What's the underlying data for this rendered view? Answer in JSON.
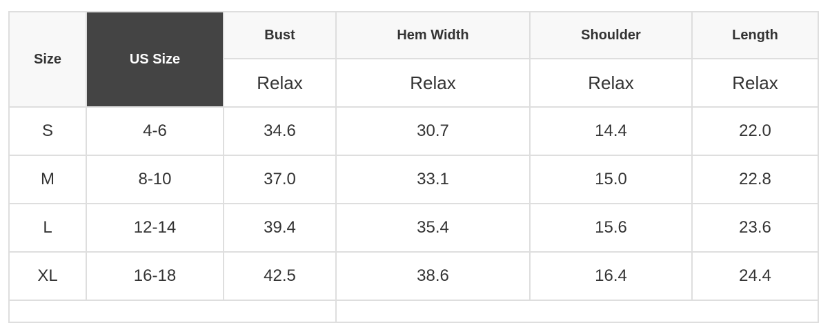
{
  "table": {
    "headers": {
      "size": "Size",
      "us_size": "US Size",
      "measures": [
        "Bust",
        "Hem Width",
        "Shoulder",
        "Length"
      ],
      "sub": [
        "Relax",
        "Relax",
        "Relax",
        "Relax"
      ]
    },
    "rows": [
      [
        "S",
        "4-6",
        "34.6",
        "30.7",
        "14.4",
        "22.0"
      ],
      [
        "M",
        "8-10",
        "37.0",
        "33.1",
        "15.0",
        "22.8"
      ],
      [
        "L",
        "12-14",
        "39.4",
        "35.4",
        "15.6",
        "23.6"
      ],
      [
        "XL",
        "16-18",
        "42.5",
        "38.6",
        "16.4",
        "24.4"
      ]
    ],
    "colors": {
      "header_bg": "#f8f8f8",
      "highlight_bg": "#444444",
      "border": "#dedede"
    }
  }
}
